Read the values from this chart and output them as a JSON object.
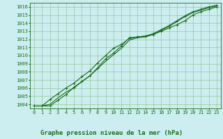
{
  "title": "Graphe pression niveau de la mer (hPa)",
  "x": [
    0,
    1,
    2,
    3,
    4,
    5,
    6,
    7,
    8,
    9,
    10,
    11,
    12,
    13,
    14,
    15,
    16,
    17,
    18,
    19,
    20,
    21,
    22,
    23
  ],
  "line1": [
    1003.8,
    1003.8,
    1003.8,
    1004.5,
    1005.2,
    1006.1,
    1006.8,
    1007.5,
    1008.5,
    1009.6,
    1010.3,
    1011.2,
    1012.2,
    1012.3,
    1012.4,
    1012.6,
    1013.0,
    1013.4,
    1013.8,
    1014.3,
    1015.0,
    1015.4,
    1015.7,
    1016.0
  ],
  "line2": [
    1003.8,
    1003.8,
    1004.0,
    1004.8,
    1005.5,
    1006.0,
    1006.8,
    1007.5,
    1008.4,
    1009.3,
    1010.1,
    1010.9,
    1011.9,
    1012.2,
    1012.3,
    1012.6,
    1013.1,
    1013.6,
    1014.2,
    1014.8,
    1015.3,
    1015.6,
    1015.9,
    1016.1
  ],
  "line3": [
    1003.8,
    1003.8,
    1004.6,
    1005.3,
    1006.0,
    1006.6,
    1007.4,
    1008.1,
    1009.1,
    1010.0,
    1010.9,
    1011.4,
    1012.1,
    1012.3,
    1012.4,
    1012.7,
    1013.2,
    1013.7,
    1014.3,
    1014.9,
    1015.4,
    1015.7,
    1016.0,
    1016.2
  ],
  "line_color": "#1a6b1a",
  "bg_color": "#cceef0",
  "grid_color": "#88bb88",
  "title_color": "#1a6b1a",
  "ylim": [
    1003.5,
    1016.5
  ],
  "yticks": [
    1004,
    1005,
    1006,
    1007,
    1008,
    1009,
    1010,
    1011,
    1012,
    1013,
    1014,
    1015,
    1016
  ],
  "xticks": [
    0,
    1,
    2,
    3,
    4,
    5,
    6,
    7,
    8,
    9,
    10,
    11,
    12,
    13,
    14,
    15,
    16,
    17,
    18,
    19,
    20,
    21,
    22,
    23
  ],
  "marker": "+",
  "marker_size": 3,
  "line_width": 0.8,
  "title_fontsize": 6.5,
  "tick_fontsize": 5.0
}
